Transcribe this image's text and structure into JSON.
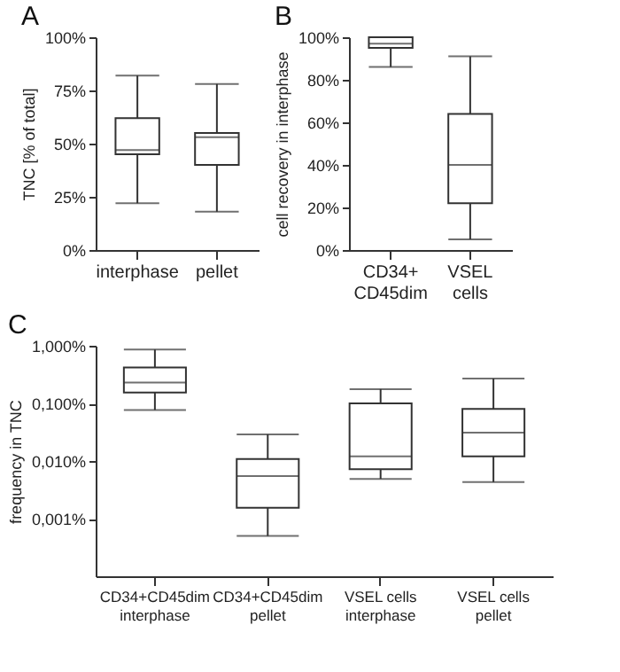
{
  "chart_data": [
    {
      "type": "box",
      "title": "A",
      "ylabel": "TNC [% of total]",
      "categories": [
        "interphase",
        "pellet"
      ],
      "boxes": [
        {
          "low": 22,
          "q1": 45,
          "median": 47,
          "q3": 62,
          "high": 82
        },
        {
          "low": 18,
          "q1": 40,
          "median": 53,
          "q3": 55,
          "high": 78
        }
      ],
      "ylim": [
        0,
        100
      ],
      "yticks": [
        {
          "value": 0,
          "label": "0%"
        },
        {
          "value": 25,
          "label": "25%"
        },
        {
          "value": 50,
          "label": "50%"
        },
        {
          "value": 75,
          "label": "75%"
        },
        {
          "value": 100,
          "label": "100%"
        }
      ]
    },
    {
      "type": "box",
      "title": "B",
      "ylabel": "cell recovery in interphase",
      "categories": [
        "CD34+\nCD45dim",
        "VSEL\ncells"
      ],
      "boxes": [
        {
          "low": 86,
          "q1": 95,
          "median": 97,
          "q3": 100,
          "high": 100
        },
        {
          "low": 5,
          "q1": 22,
          "median": 40,
          "q3": 64,
          "high": 91
        }
      ],
      "ylim": [
        0,
        100
      ],
      "yticks": [
        {
          "value": 0,
          "label": "0%"
        },
        {
          "value": 20,
          "label": "20%"
        },
        {
          "value": 40,
          "label": "40%"
        },
        {
          "value": 60,
          "label": "60%"
        },
        {
          "value": 80,
          "label": "80%"
        },
        {
          "value": 100,
          "label": "100%"
        }
      ]
    },
    {
      "type": "box",
      "title": "C",
      "ylabel": "frequency in TNC",
      "log": true,
      "categories": [
        "CD34+CD45dim\ninterphase",
        "CD34+CD45dim\npellet",
        "VSEL cells\ninterphase",
        "VSEL cells\npellet"
      ],
      "boxes": [
        {
          "low": 0.077,
          "q1": 0.155,
          "median": 0.23,
          "q3": 0.42,
          "high": 0.86
        },
        {
          "low": 0.0005,
          "q1": 0.00155,
          "median": 0.0055,
          "q3": 0.0108,
          "high": 0.029
        },
        {
          "low": 0.0049,
          "q1": 0.0072,
          "median": 0.012,
          "q3": 0.1,
          "high": 0.177
        },
        {
          "low": 0.0043,
          "q1": 0.012,
          "median": 0.031,
          "q3": 0.08,
          "high": 0.27
        }
      ],
      "ylim": [
        0.0001,
        1
      ],
      "yticks": [
        {
          "value": 0.001,
          "label": "0,001%"
        },
        {
          "value": 0.01,
          "label": "0,010%"
        },
        {
          "value": 0.1,
          "label": "0,100%"
        },
        {
          "value": 1,
          "label": "1,000%"
        }
      ]
    }
  ]
}
